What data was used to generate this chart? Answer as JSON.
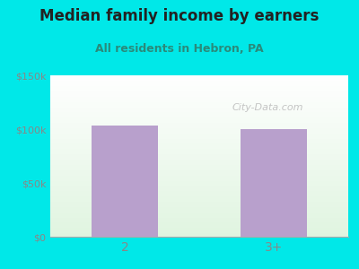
{
  "title": "Median family income by earners",
  "subtitle": "All residents in Hebron, PA",
  "categories": [
    "2",
    "3+"
  ],
  "values": [
    103000,
    100000
  ],
  "bar_color": "#b8a0cc",
  "bg_outer_color": "#00e8e8",
  "title_color": "#222222",
  "subtitle_color": "#2a8a7a",
  "tick_label_color": "#888888",
  "ylim": [
    0,
    150000
  ],
  "yticks": [
    0,
    50000,
    100000,
    150000
  ],
  "ytick_labels": [
    "$0",
    "$50k",
    "$100k",
    "$150k"
  ],
  "watermark": "City-Data.com",
  "watermark_color": "#bbbbbb",
  "title_fontsize": 12,
  "subtitle_fontsize": 9
}
